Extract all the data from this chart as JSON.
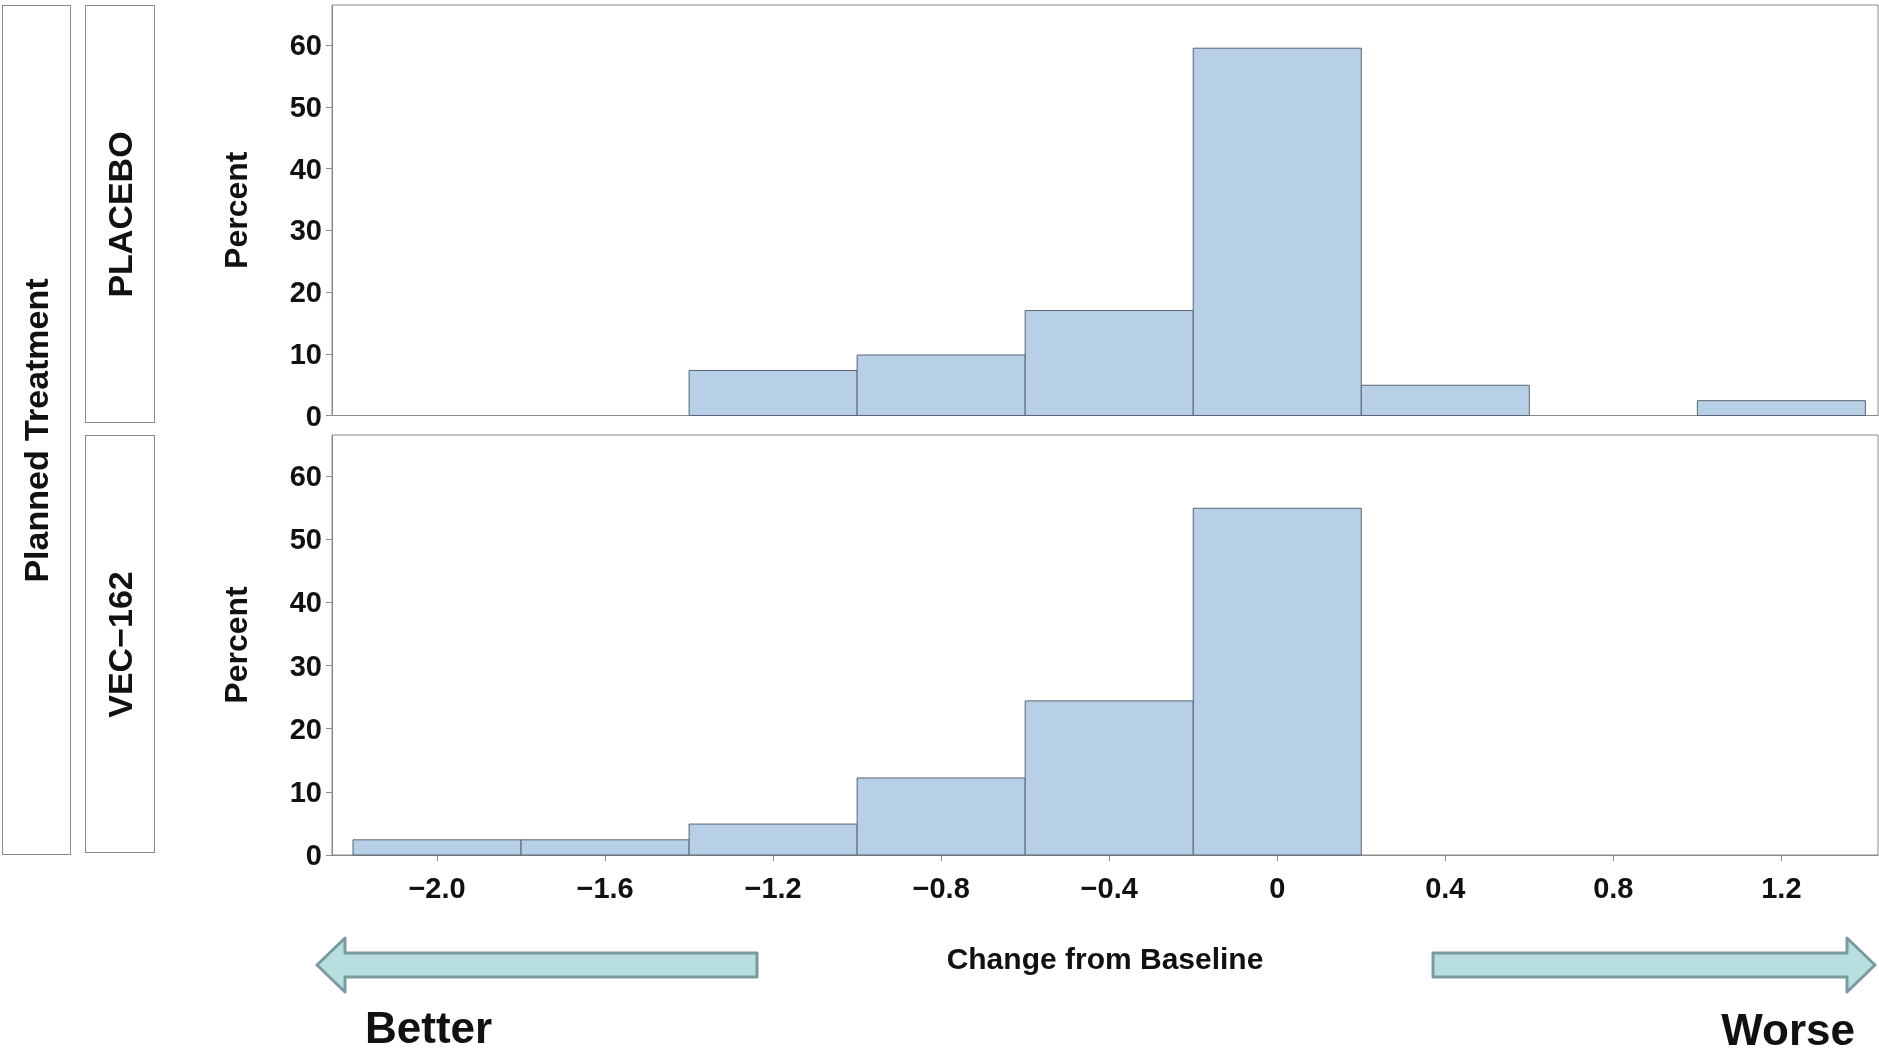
{
  "chart_data": [
    {
      "type": "histogram",
      "title": "PLACEBO",
      "ylabel": "Percent",
      "annotations": [
        "Planned Treatment"
      ],
      "bins": [
        -2.2,
        -1.8,
        -1.4,
        -1.0,
        -0.6,
        -0.2,
        0.2,
        0.6,
        1.0,
        1.4
      ],
      "values": [
        0,
        0,
        7.3,
        9.8,
        17,
        59.5,
        4.9,
        0,
        2.4
      ],
      "color": "#b8cfe8",
      "xlim": [
        -2.25,
        1.43
      ],
      "ylim": [
        0,
        66.5
      ],
      "yticks": [
        0,
        10,
        20,
        30,
        40,
        50,
        60
      ],
      "tick_labels": "y",
      "grid": false
    },
    {
      "type": "histogram",
      "title": "VEC−162",
      "ylabel": "Percent",
      "xlabel": "Change from Baseline",
      "annotations": [
        "Better",
        "Worse"
      ],
      "bins": [
        -2.2,
        -1.8,
        -1.4,
        -1.0,
        -0.6,
        -0.2,
        0.2,
        0.6,
        1.0,
        1.4
      ],
      "values": [
        2.4,
        2.4,
        4.9,
        12.2,
        24.4,
        54.9,
        0,
        0,
        0
      ],
      "color": "#b8cfe8",
      "xlim": [
        -2.25,
        1.43
      ],
      "ylim": [
        0,
        66.5
      ],
      "xticks": [
        {
          "value": -2.0,
          "label": "−2.0"
        },
        {
          "value": -1.6,
          "label": "−1.6"
        },
        {
          "value": -1.2,
          "label": "−1.2"
        },
        {
          "value": -0.8,
          "label": "−0.8"
        },
        {
          "value": -0.4,
          "label": "−0.4"
        },
        0,
        0.4,
        0.8,
        1.2
      ],
      "yticks": [
        0,
        10,
        20,
        30,
        40,
        50,
        60
      ],
      "grid": false
    }
  ]
}
